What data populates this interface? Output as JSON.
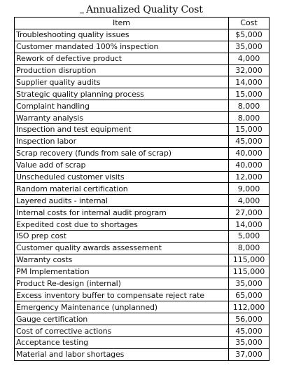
{
  "title": "Annualized Quality Cost",
  "headers": {
    "item": "Item",
    "cost": "Cost"
  },
  "rows": [
    {
      "item": "Troubleshooting quality issues",
      "cost": "$5,000"
    },
    {
      "item": "Customer mandated 100% inspection",
      "cost": "35,000"
    },
    {
      "item": "Rework of defective product",
      "cost": "4,000"
    },
    {
      "item": "Production disruption",
      "cost": "32,000"
    },
    {
      "item": "Supplier quality audits",
      "cost": "14,000"
    },
    {
      "item": "Strategic quality planning process",
      "cost": "15,000"
    },
    {
      "item": "Complaint handling",
      "cost": "8,000"
    },
    {
      "item": "Warranty analysis",
      "cost": "8,000"
    },
    {
      "item": "Inspection and test equipment",
      "cost": "15,000"
    },
    {
      "item": "Inspection labor",
      "cost": "45,000"
    },
    {
      "item": "Scrap recovery (funds from sale of scrap)",
      "cost": "40,000"
    },
    {
      "item": "Value add of scrap",
      "cost": "40,000"
    },
    {
      "item": "Unscheduled customer visits",
      "cost": "12,000"
    },
    {
      "item": "Random material certification",
      "cost": "9,000"
    },
    {
      "item": "Layered audits - internal",
      "cost": "4,000"
    },
    {
      "item": "Internal costs for internal audit program",
      "cost": "27,000"
    },
    {
      "item": "Expedited cost due to shortages",
      "cost": "14,000"
    },
    {
      "item": "ISO prep cost",
      "cost": "5,000"
    },
    {
      "item": "Customer quality awards assessement",
      "cost": "8,000"
    },
    {
      "item": "Warranty costs",
      "cost": "115,000"
    },
    {
      "item": "PM Implementation",
      "cost": "115,000"
    },
    {
      "item": "Product Re-design (internal)",
      "cost": "35,000"
    },
    {
      "item": "Excess inventory buffer to compensate reject rate",
      "cost": "65,000"
    },
    {
      "item": "Emergency Maintenance (unplanned)",
      "cost": "112,000"
    },
    {
      "item": "Gauge certification",
      "cost": "56,000"
    },
    {
      "item": "Cost of corrective actions",
      "cost": "45,000"
    },
    {
      "item": "Acceptance testing",
      "cost": "35,000"
    },
    {
      "item": "Material and labor shortages",
      "cost": "37,000"
    }
  ]
}
